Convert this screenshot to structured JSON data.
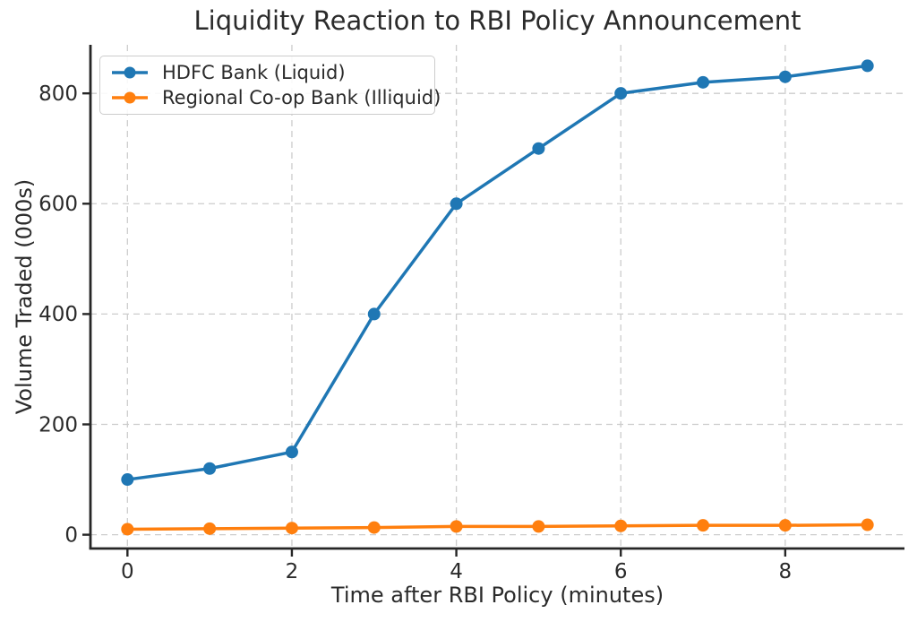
{
  "chart_data": {
    "type": "line",
    "title": "Liquidity Reaction to RBI Policy Announcement",
    "xlabel": "Time after RBI Policy (minutes)",
    "ylabel": "Volume Traded (000s)",
    "x": [
      0,
      1,
      2,
      3,
      4,
      5,
      6,
      7,
      8,
      9
    ],
    "series": [
      {
        "name": "HDFC Bank (Liquid)",
        "color": "#1f77b4",
        "marker": "circle",
        "values": [
          100,
          120,
          150,
          400,
          600,
          700,
          800,
          820,
          830,
          850
        ]
      },
      {
        "name": "Regional Co-op Bank (Illiquid)",
        "color": "#ff7f0e",
        "marker": "circle",
        "values": [
          10,
          11,
          12,
          13,
          15,
          15,
          16,
          17,
          17,
          18
        ]
      }
    ],
    "xticks": [
      0,
      2,
      4,
      6,
      8
    ],
    "yticks": [
      0,
      200,
      400,
      600,
      800
    ],
    "xlim": [
      -0.45,
      9.45
    ],
    "ylim": [
      -25,
      888
    ],
    "grid": true,
    "grid_style": "dashed",
    "legend_position": "upper-left"
  },
  "style": {
    "blue": "#1f77b4",
    "orange": "#ff7f0e",
    "text_color": "#2b2b2b",
    "spine_color": "#262626",
    "grid_color": "#cccccc",
    "background": "#ffffff"
  }
}
